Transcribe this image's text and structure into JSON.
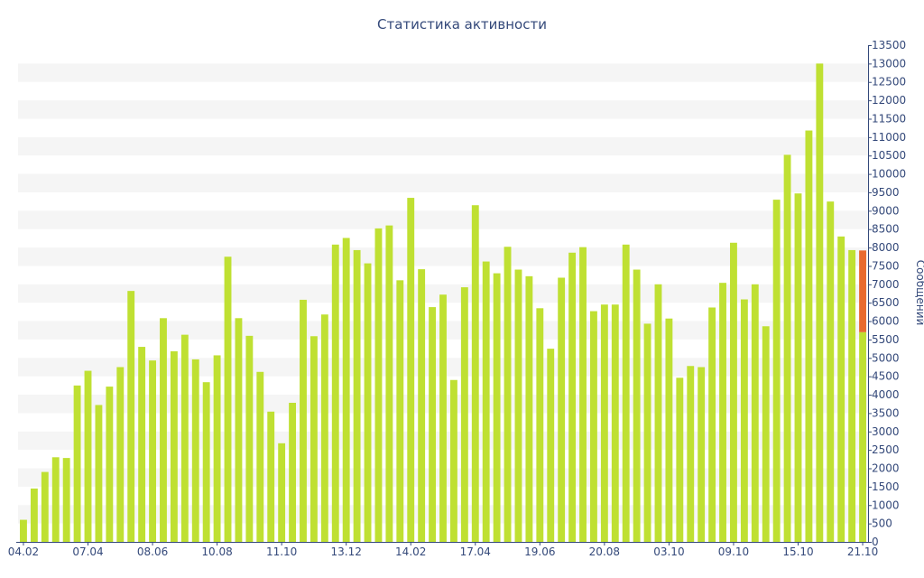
{
  "chart_data": {
    "type": "bar",
    "title": "Статистика активности",
    "ylabel": "Сообщений",
    "xlabel": "",
    "ylim": [
      0,
      13500
    ],
    "y_tick_step": 500,
    "grid": "horizontal alternating bands",
    "x_tick_labels": [
      "04.02",
      "07.04",
      "08.06",
      "10.08",
      "11.10",
      "13.12",
      "14.02",
      "17.04",
      "19.06",
      "20.08",
      "03.10",
      "09.10",
      "15.10",
      "21.10"
    ],
    "x_tick_positions": [
      0,
      6,
      12,
      18,
      24,
      30,
      36,
      42,
      48,
      54,
      60,
      66,
      72,
      78
    ],
    "values": [
      600,
      1450,
      1900,
      2300,
      2280,
      4250,
      4650,
      3720,
      4220,
      4750,
      6820,
      5300,
      4930,
      6080,
      5180,
      5630,
      4960,
      4340,
      5070,
      7750,
      6080,
      5600,
      4620,
      3540,
      2680,
      3780,
      6580,
      5590,
      6180,
      8080,
      8260,
      7930,
      7570,
      8520,
      8600,
      7110,
      9350,
      7410,
      6380,
      6720,
      4400,
      6920,
      9150,
      7620,
      7300,
      8020,
      7400,
      7220,
      6350,
      5250,
      7180,
      7860,
      8010,
      6270,
      6450,
      6450,
      8080,
      7400,
      5930,
      7000,
      6070,
      4460,
      4780,
      4750,
      6370,
      7040,
      8130,
      6590,
      7000,
      5860,
      9300,
      10520,
      9470,
      11180,
      13000,
      9250,
      8300,
      7930,
      5700
    ],
    "highlight_extension": 2220,
    "colors": {
      "bar": "#bfe032",
      "highlight": "#e96a2f",
      "text": "#34497a",
      "band": "#f5f5f5",
      "axis": "#34497a"
    }
  }
}
